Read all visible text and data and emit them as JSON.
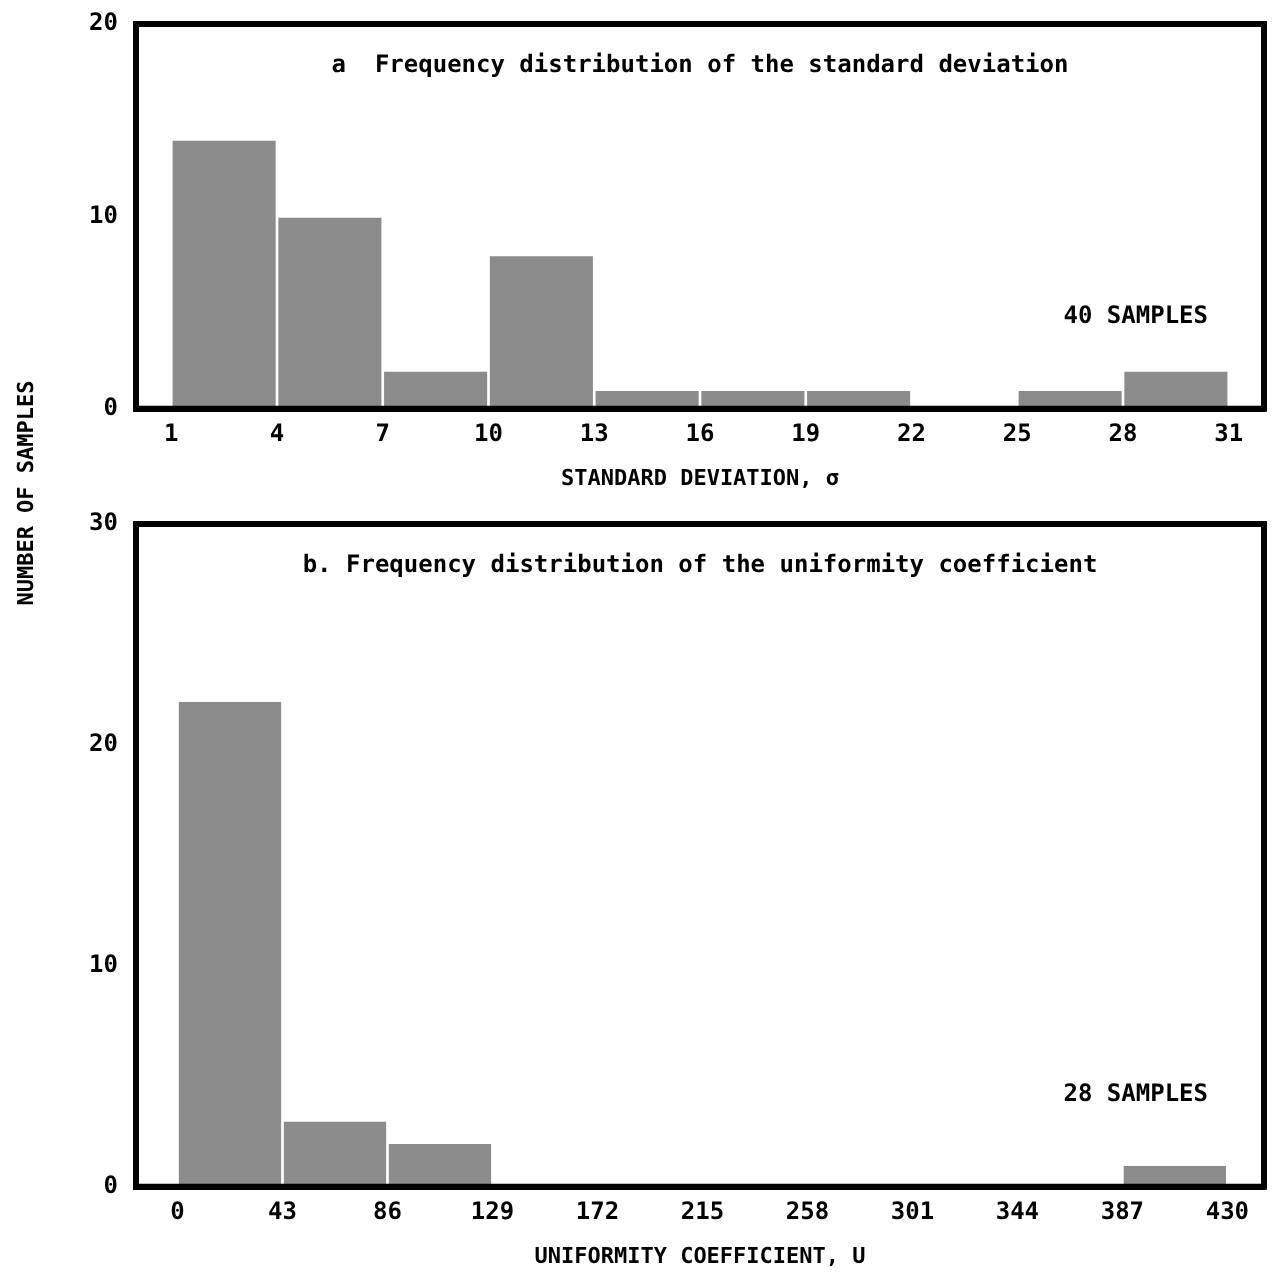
{
  "chart_data": [
    {
      "type": "histogram",
      "title": "a  Frequency distribution of the standard deviation",
      "xlabel": "STANDARD DEVIATION, σ",
      "ylabel": "NUMBER OF SAMPLES",
      "bins": [
        1,
        4,
        7,
        10,
        13,
        16,
        19,
        22,
        25,
        28,
        31
      ],
      "values": [
        14,
        10,
        2,
        8,
        1,
        1,
        1,
        0,
        1,
        2
      ],
      "color": "#8c8c8c",
      "xlim": [
        0,
        32
      ],
      "xticks": [
        1,
        4,
        7,
        10,
        13,
        16,
        19,
        22,
        25,
        28,
        31
      ],
      "ylim": [
        0,
        20
      ],
      "yticks": [
        0,
        10,
        20
      ],
      "annotations": [
        "40 SAMPLES"
      ],
      "grid": false,
      "legend": false
    },
    {
      "type": "histogram",
      "title": "b. Frequency distribution of the uniformity coefficient",
      "xlabel": "UNIFORMITY COEFFICIENT, U",
      "bins": [
        0,
        43,
        86,
        129,
        172,
        215,
        258,
        301,
        344,
        387,
        430
      ],
      "values": [
        22,
        3,
        2,
        0,
        0,
        0,
        0,
        0,
        0,
        1
      ],
      "color": "#8c8c8c",
      "xlim": [
        -17,
        445
      ],
      "xticks": [
        0,
        43,
        86,
        129,
        172,
        215,
        258,
        301,
        344,
        387,
        430
      ],
      "ylim": [
        0,
        30
      ],
      "yticks": [
        0,
        10,
        20,
        30
      ],
      "annotations": [
        "28 SAMPLES"
      ],
      "grid": false,
      "legend": false
    }
  ]
}
